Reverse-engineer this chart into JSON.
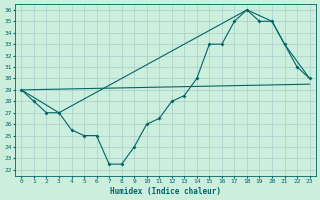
{
  "xlabel": "Humidex (Indice chaleur)",
  "bg_color": "#cceedd",
  "grid_color": "#aacccc",
  "line_color": "#006666",
  "xlim": [
    -0.5,
    23.5
  ],
  "ylim": [
    21.5,
    36.5
  ],
  "xticks": [
    0,
    1,
    2,
    3,
    4,
    5,
    6,
    7,
    8,
    9,
    10,
    11,
    12,
    13,
    14,
    15,
    16,
    17,
    18,
    19,
    20,
    21,
    22,
    23
  ],
  "yticks": [
    22,
    23,
    24,
    25,
    26,
    27,
    28,
    29,
    30,
    31,
    32,
    33,
    34,
    35,
    36
  ],
  "line1_x": [
    0,
    1,
    2,
    3,
    4,
    5,
    6,
    7,
    8,
    9,
    10,
    11,
    12,
    13,
    14,
    15,
    16,
    17,
    18,
    19,
    20,
    21,
    22,
    23
  ],
  "line1_y": [
    29,
    28,
    27,
    27,
    25.5,
    25,
    25,
    22.5,
    22.5,
    24,
    26,
    26.5,
    28,
    28.5,
    30,
    33,
    33,
    35,
    36,
    35,
    35,
    33,
    31,
    30
  ],
  "line2_x": [
    0,
    23
  ],
  "line2_y": [
    29,
    29.5
  ],
  "line3_x": [
    0,
    3,
    18,
    19,
    20,
    21,
    22,
    23
  ],
  "line3_y": [
    29,
    27,
    36,
    35.5,
    35,
    33,
    31.5,
    30
  ]
}
